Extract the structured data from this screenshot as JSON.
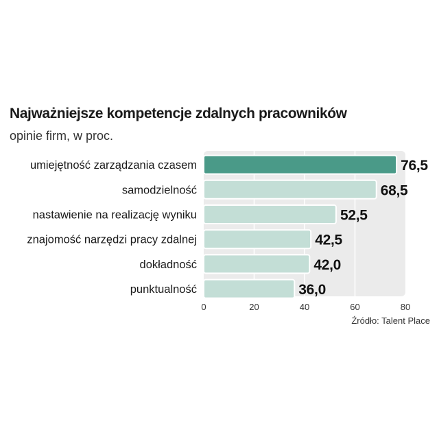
{
  "chart_data": {
    "type": "bar",
    "orientation": "horizontal",
    "title": "Najważniejsze kompetencje zdalnych pracowników",
    "subtitle": "opinie firm, w proc.",
    "categories": [
      "umiejętność zarządzania czasem",
      "samodzielność",
      "nastawienie na realizację wyniku",
      "znajomość narzędzi pracy zdalnej",
      "dokładność",
      "punktualność"
    ],
    "values": [
      76.5,
      68.5,
      52.5,
      42.5,
      42.0,
      36.0
    ],
    "value_labels": [
      "76,5",
      "68,5",
      "52,5",
      "42,5",
      "42,0",
      "36,0"
    ],
    "xlim": [
      0,
      80
    ],
    "xticks": [
      0,
      20,
      40,
      60,
      80
    ],
    "xlabel": "",
    "ylabel": "",
    "grid": true,
    "source": "Źródło:  Talent Place",
    "colors": {
      "highlight": "#4a9a88",
      "bar": "#c3ded6",
      "bar_border": "#ffffff",
      "plot_bg": "#ebebeb",
      "grid": "#ffffff"
    }
  }
}
